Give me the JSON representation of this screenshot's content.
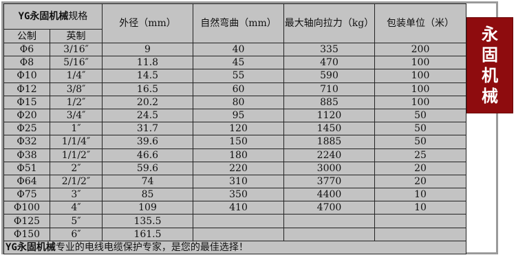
{
  "header": {
    "brand": "YG永固机械",
    "spec": "规格",
    "metric": "公制",
    "imperial": "英制",
    "outer_diameter": "外径（mm）",
    "bend": "自然弯曲（mm）",
    "tension": "最大轴向拉力（kg）",
    "package": "包装单位（米）"
  },
  "rows": [
    [
      "Φ6",
      "3/16″",
      "9",
      "40",
      "335",
      "200"
    ],
    [
      "Φ8",
      "5/16″",
      "11.8",
      "45",
      "470",
      "100"
    ],
    [
      "Φ10",
      "1/4″",
      "14.5",
      "55",
      "590",
      "100"
    ],
    [
      "Φ12",
      "3/8″",
      "16.5",
      "60",
      "710",
      "100"
    ],
    [
      "Φ15",
      "1/2″",
      "20.2",
      "80",
      "885",
      "100"
    ],
    [
      "Φ20",
      "3/4″",
      "24.5",
      "95",
      "1120",
      "50"
    ],
    [
      "Φ25",
      "1″",
      "31.7",
      "120",
      "1450",
      "50"
    ],
    [
      "Φ32",
      "1/1/4″",
      "39.6",
      "150",
      "1885",
      "50"
    ],
    [
      "Φ38",
      "1/1/2″",
      "46.6",
      "180",
      "2240",
      "25"
    ],
    [
      "Φ51",
      "2″",
      "59.6",
      "220",
      "3000",
      "20"
    ],
    [
      "Φ64",
      "2/1/2″",
      "74",
      "310",
      "3770",
      "20"
    ],
    [
      "Φ75",
      "3″",
      "85",
      "350",
      "4400",
      "10"
    ],
    [
      "Φ100",
      "4″",
      "109",
      "410",
      "4700",
      "10"
    ],
    [
      "Φ125",
      "5″",
      "135.5",
      "",
      "",
      ""
    ],
    [
      "Φ150",
      "6″",
      "161.5",
      "",
      "",
      ""
    ]
  ],
  "footer": {
    "brand": "YG永固机械",
    "text": "专业的电线电缆保护专家，是您的最佳选择！"
  },
  "badge": {
    "chars": [
      "永",
      "固",
      "机",
      "械"
    ],
    "color": "#8e0c0e"
  }
}
